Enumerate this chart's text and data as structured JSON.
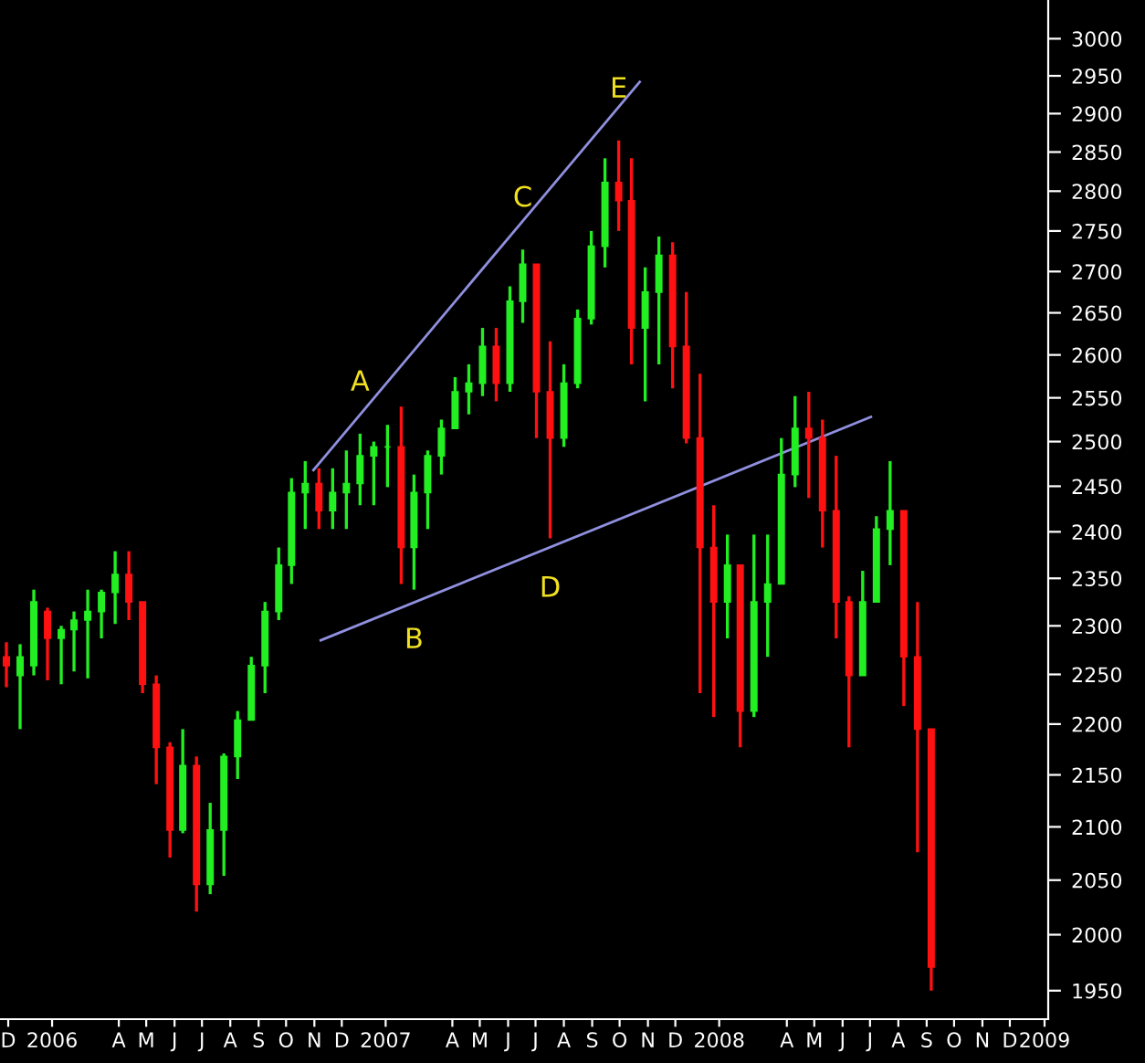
{
  "chart_data": {
    "type": "candlestick",
    "x": [
      "2005-12-13",
      "2005-12-28",
      "2006-01-12",
      "2006-01-27",
      "2006-02-11",
      "2006-02-25",
      "2006-03-12",
      "2006-03-27",
      "2006-04-11",
      "2006-04-26",
      "2006-05-11",
      "2006-05-26",
      "2006-06-10",
      "2006-06-24",
      "2006-07-09",
      "2006-07-24",
      "2006-08-08",
      "2006-08-23",
      "2006-09-07",
      "2006-09-22",
      "2006-10-07",
      "2006-10-21",
      "2006-11-05",
      "2006-11-20",
      "2006-12-05",
      "2006-12-20",
      "2007-01-04",
      "2007-01-19",
      "2007-02-03",
      "2007-02-18",
      "2007-03-04",
      "2007-03-19",
      "2007-04-03",
      "2007-04-18",
      "2007-05-03",
      "2007-05-18",
      "2007-06-02",
      "2007-06-17",
      "2007-07-01",
      "2007-07-16",
      "2007-07-31",
      "2007-08-15",
      "2007-08-30",
      "2007-09-14",
      "2007-09-29",
      "2007-10-14",
      "2007-10-28",
      "2007-11-12",
      "2007-11-27",
      "2007-12-12",
      "2007-12-27",
      "2008-01-11",
      "2008-01-26",
      "2008-02-10",
      "2008-02-24",
      "2008-03-10",
      "2008-03-25",
      "2008-04-09",
      "2008-04-24",
      "2008-05-09",
      "2008-05-24",
      "2008-06-08",
      "2008-06-22",
      "2008-07-07",
      "2008-07-22",
      "2008-08-06",
      "2008-08-21",
      "2008-09-05",
      "2008-09-20"
    ],
    "ohlc": [
      [
        2268,
        2283,
        2237,
        2259
      ],
      [
        2249,
        2281,
        2195,
        2268
      ],
      [
        2259,
        2338,
        2249,
        2325
      ],
      [
        2315,
        2319,
        2244,
        2287
      ],
      [
        2287,
        2300,
        2240,
        2296
      ],
      [
        2296,
        2315,
        2253,
        2306
      ],
      [
        2306,
        2338,
        2246,
        2315
      ],
      [
        2315,
        2338,
        2287,
        2335
      ],
      [
        2335,
        2379,
        2302,
        2354
      ],
      [
        2354,
        2379,
        2306,
        2325
      ],
      [
        2325,
        2325,
        2231,
        2240
      ],
      [
        2240,
        2249,
        2141,
        2177
      ],
      [
        2177,
        2182,
        2071,
        2097
      ],
      [
        2097,
        2195,
        2094,
        2159
      ],
      [
        2159,
        2168,
        2021,
        2046
      ],
      [
        2046,
        2123,
        2037,
        2097
      ],
      [
        2097,
        2171,
        2054,
        2168
      ],
      [
        2168,
        2213,
        2146,
        2204
      ],
      [
        2204,
        2268,
        2204,
        2259
      ],
      [
        2259,
        2325,
        2231,
        2315
      ],
      [
        2315,
        2383,
        2306,
        2364
      ],
      [
        2364,
        2459,
        2344,
        2443
      ],
      [
        2443,
        2478,
        2403,
        2453
      ],
      [
        2453,
        2470,
        2403,
        2423
      ],
      [
        2423,
        2470,
        2403,
        2443
      ],
      [
        2443,
        2490,
        2403,
        2453
      ],
      [
        2453,
        2509,
        2429,
        2484
      ],
      [
        2484,
        2500,
        2429,
        2494
      ],
      [
        2494,
        2519,
        2449,
        2494
      ],
      [
        2494,
        2540,
        2344,
        2383
      ],
      [
        2383,
        2463,
        2338,
        2443
      ],
      [
        2443,
        2490,
        2403,
        2484
      ],
      [
        2484,
        2525,
        2463,
        2515
      ],
      [
        2515,
        2574,
        2515,
        2557
      ],
      [
        2557,
        2589,
        2531,
        2567
      ],
      [
        2567,
        2632,
        2552,
        2610
      ],
      [
        2610,
        2632,
        2546,
        2567
      ],
      [
        2567,
        2682,
        2557,
        2664
      ],
      [
        2664,
        2727,
        2638,
        2709
      ],
      [
        2709,
        2709,
        2504,
        2557
      ],
      [
        2557,
        2616,
        2393,
        2504
      ],
      [
        2504,
        2589,
        2494,
        2567
      ],
      [
        2567,
        2654,
        2561,
        2643
      ],
      [
        2643,
        2750,
        2636,
        2731
      ],
      [
        2731,
        2842,
        2705,
        2811
      ],
      [
        2811,
        2865,
        2750,
        2788
      ],
      [
        2788,
        2842,
        2589,
        2632
      ],
      [
        2632,
        2705,
        2546,
        2675
      ],
      [
        2675,
        2743,
        2589,
        2720
      ],
      [
        2720,
        2736,
        2561,
        2610
      ],
      [
        2610,
        2675,
        2498,
        2504
      ],
      [
        2504,
        2578,
        2231,
        2383
      ],
      [
        2383,
        2429,
        2207,
        2325
      ],
      [
        2325,
        2397,
        2287,
        2364
      ],
      [
        2364,
        2364,
        2177,
        2213
      ],
      [
        2213,
        2397,
        2207,
        2325
      ],
      [
        2325,
        2397,
        2268,
        2344
      ],
      [
        2344,
        2504,
        2344,
        2463
      ],
      [
        2463,
        2552,
        2449,
        2515
      ],
      [
        2515,
        2557,
        2437,
        2504
      ],
      [
        2504,
        2525,
        2383,
        2423
      ],
      [
        2423,
        2484,
        2287,
        2325
      ],
      [
        2325,
        2331,
        2177,
        2249
      ],
      [
        2249,
        2358,
        2249,
        2325
      ],
      [
        2325,
        2417,
        2325,
        2403
      ],
      [
        2403,
        2478,
        2364,
        2423
      ],
      [
        2423,
        2423,
        2218,
        2268
      ],
      [
        2268,
        2325,
        2076,
        2195
      ],
      [
        2195,
        2195,
        1950,
        1971
      ]
    ],
    "colors": [
      "#ff1111",
      "#22ee22",
      "#22ee22",
      "#ff1111",
      "#22ee22",
      "#22ee22",
      "#22ee22",
      "#22ee22",
      "#22ee22",
      "#ff1111",
      "#ff1111",
      "#ff1111",
      "#ff1111",
      "#22ee22",
      "#ff1111",
      "#22ee22",
      "#22ee22",
      "#22ee22",
      "#22ee22",
      "#22ee22",
      "#22ee22",
      "#22ee22",
      "#22ee22",
      "#ff1111",
      "#22ee22",
      "#22ee22",
      "#22ee22",
      "#22ee22",
      "#22ee22",
      "#ff1111",
      "#22ee22",
      "#22ee22",
      "#22ee22",
      "#22ee22",
      "#22ee22",
      "#22ee22",
      "#ff1111",
      "#22ee22",
      "#22ee22",
      "#ff1111",
      "#ff1111",
      "#22ee22",
      "#22ee22",
      "#22ee22",
      "#22ee22",
      "#ff1111",
      "#ff1111",
      "#22ee22",
      "#22ee22",
      "#ff1111",
      "#ff1111",
      "#ff1111",
      "#ff1111",
      "#22ee22",
      "#ff1111",
      "#22ee22",
      "#22ee22",
      "#22ee22",
      "#22ee22",
      "#ff1111",
      "#ff1111",
      "#ff1111",
      "#ff1111",
      "#22ee22",
      "#22ee22",
      "#22ee22",
      "#ff1111",
      "#ff1111",
      "#ff1111"
    ],
    "series": [
      {
        "type": "line",
        "x": [
          "2006-11-14",
          "2007-11-06"
        ],
        "values": [
          2468,
          2942
        ],
        "color": "#9090e0"
      },
      {
        "type": "line",
        "x": [
          "2006-11-22",
          "2008-07-16"
        ],
        "values": [
          2285,
          2528
        ],
        "color": "#9090e0"
      }
    ],
    "annotations": [
      {
        "text": "A",
        "x": "2007-01-04",
        "y": 2509
      },
      {
        "text": "B",
        "x": "2007-03-04",
        "y": 2338
      },
      {
        "text": "C",
        "x": "2007-07-01",
        "y": 2727
      },
      {
        "text": "D",
        "x": "2007-07-31",
        "y": 2393
      },
      {
        "text": "E",
        "x": "2007-10-14",
        "y": 2865
      }
    ],
    "log": "y",
    "xlim": [
      "2005-12-06",
      "2009-01-26"
    ],
    "ylim": [
      1925,
      3053
    ],
    "yticks": [
      1950,
      2000,
      2050,
      2100,
      2150,
      2200,
      2250,
      2300,
      2350,
      2400,
      2450,
      2500,
      2550,
      2600,
      2650,
      2700,
      2750,
      2800,
      2850,
      2900,
      2950,
      3000
    ],
    "xticks": [
      {
        "value": "2005-12-15",
        "label": "D"
      },
      {
        "value": "2006-02-01",
        "label": "2006"
      },
      {
        "value": "2006-04-15",
        "label": "A"
      },
      {
        "value": "2006-05-15",
        "label": "M"
      },
      {
        "value": "2006-06-15",
        "label": "J"
      },
      {
        "value": "2006-07-15",
        "label": "J"
      },
      {
        "value": "2006-08-15",
        "label": "A"
      },
      {
        "value": "2006-09-15",
        "label": "S"
      },
      {
        "value": "2006-10-15",
        "label": "O"
      },
      {
        "value": "2006-11-15",
        "label": "N"
      },
      {
        "value": "2006-12-15",
        "label": "D"
      },
      {
        "value": "2007-02-01",
        "label": "2007"
      },
      {
        "value": "2007-04-15",
        "label": "A"
      },
      {
        "value": "2007-05-15",
        "label": "M"
      },
      {
        "value": "2007-06-15",
        "label": "J"
      },
      {
        "value": "2007-07-15",
        "label": "J"
      },
      {
        "value": "2007-08-15",
        "label": "A"
      },
      {
        "value": "2007-09-15",
        "label": "S"
      },
      {
        "value": "2007-10-15",
        "label": "O"
      },
      {
        "value": "2007-11-15",
        "label": "N"
      },
      {
        "value": "2007-12-15",
        "label": "D"
      },
      {
        "value": "2008-02-01",
        "label": "2008"
      },
      {
        "value": "2008-04-15",
        "label": "A"
      },
      {
        "value": "2008-05-15",
        "label": "M"
      },
      {
        "value": "2008-06-15",
        "label": "J"
      },
      {
        "value": "2008-07-15",
        "label": "J"
      },
      {
        "value": "2008-08-15",
        "label": "A"
      },
      {
        "value": "2008-09-15",
        "label": "S"
      },
      {
        "value": "2008-10-15",
        "label": "O"
      },
      {
        "value": "2008-11-15",
        "label": "N"
      },
      {
        "value": "2008-12-15",
        "label": "D"
      },
      {
        "value": "2009-01-22",
        "label": "2009"
      }
    ],
    "grid": false
  }
}
